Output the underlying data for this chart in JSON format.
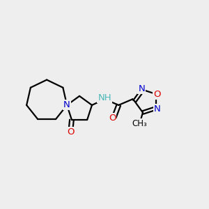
{
  "background_color": "#eeeeee",
  "atom_colors": {
    "C": "#000000",
    "N": "#0000cc",
    "O": "#dd0000",
    "NH": "#4db8b8"
  },
  "bond_color": "#000000",
  "bond_width": 1.6,
  "fig_width": 3.0,
  "fig_height": 3.0,
  "dpi": 100,
  "xlim": [
    -2.6,
    2.6
  ],
  "ylim": [
    -1.3,
    1.3
  ]
}
